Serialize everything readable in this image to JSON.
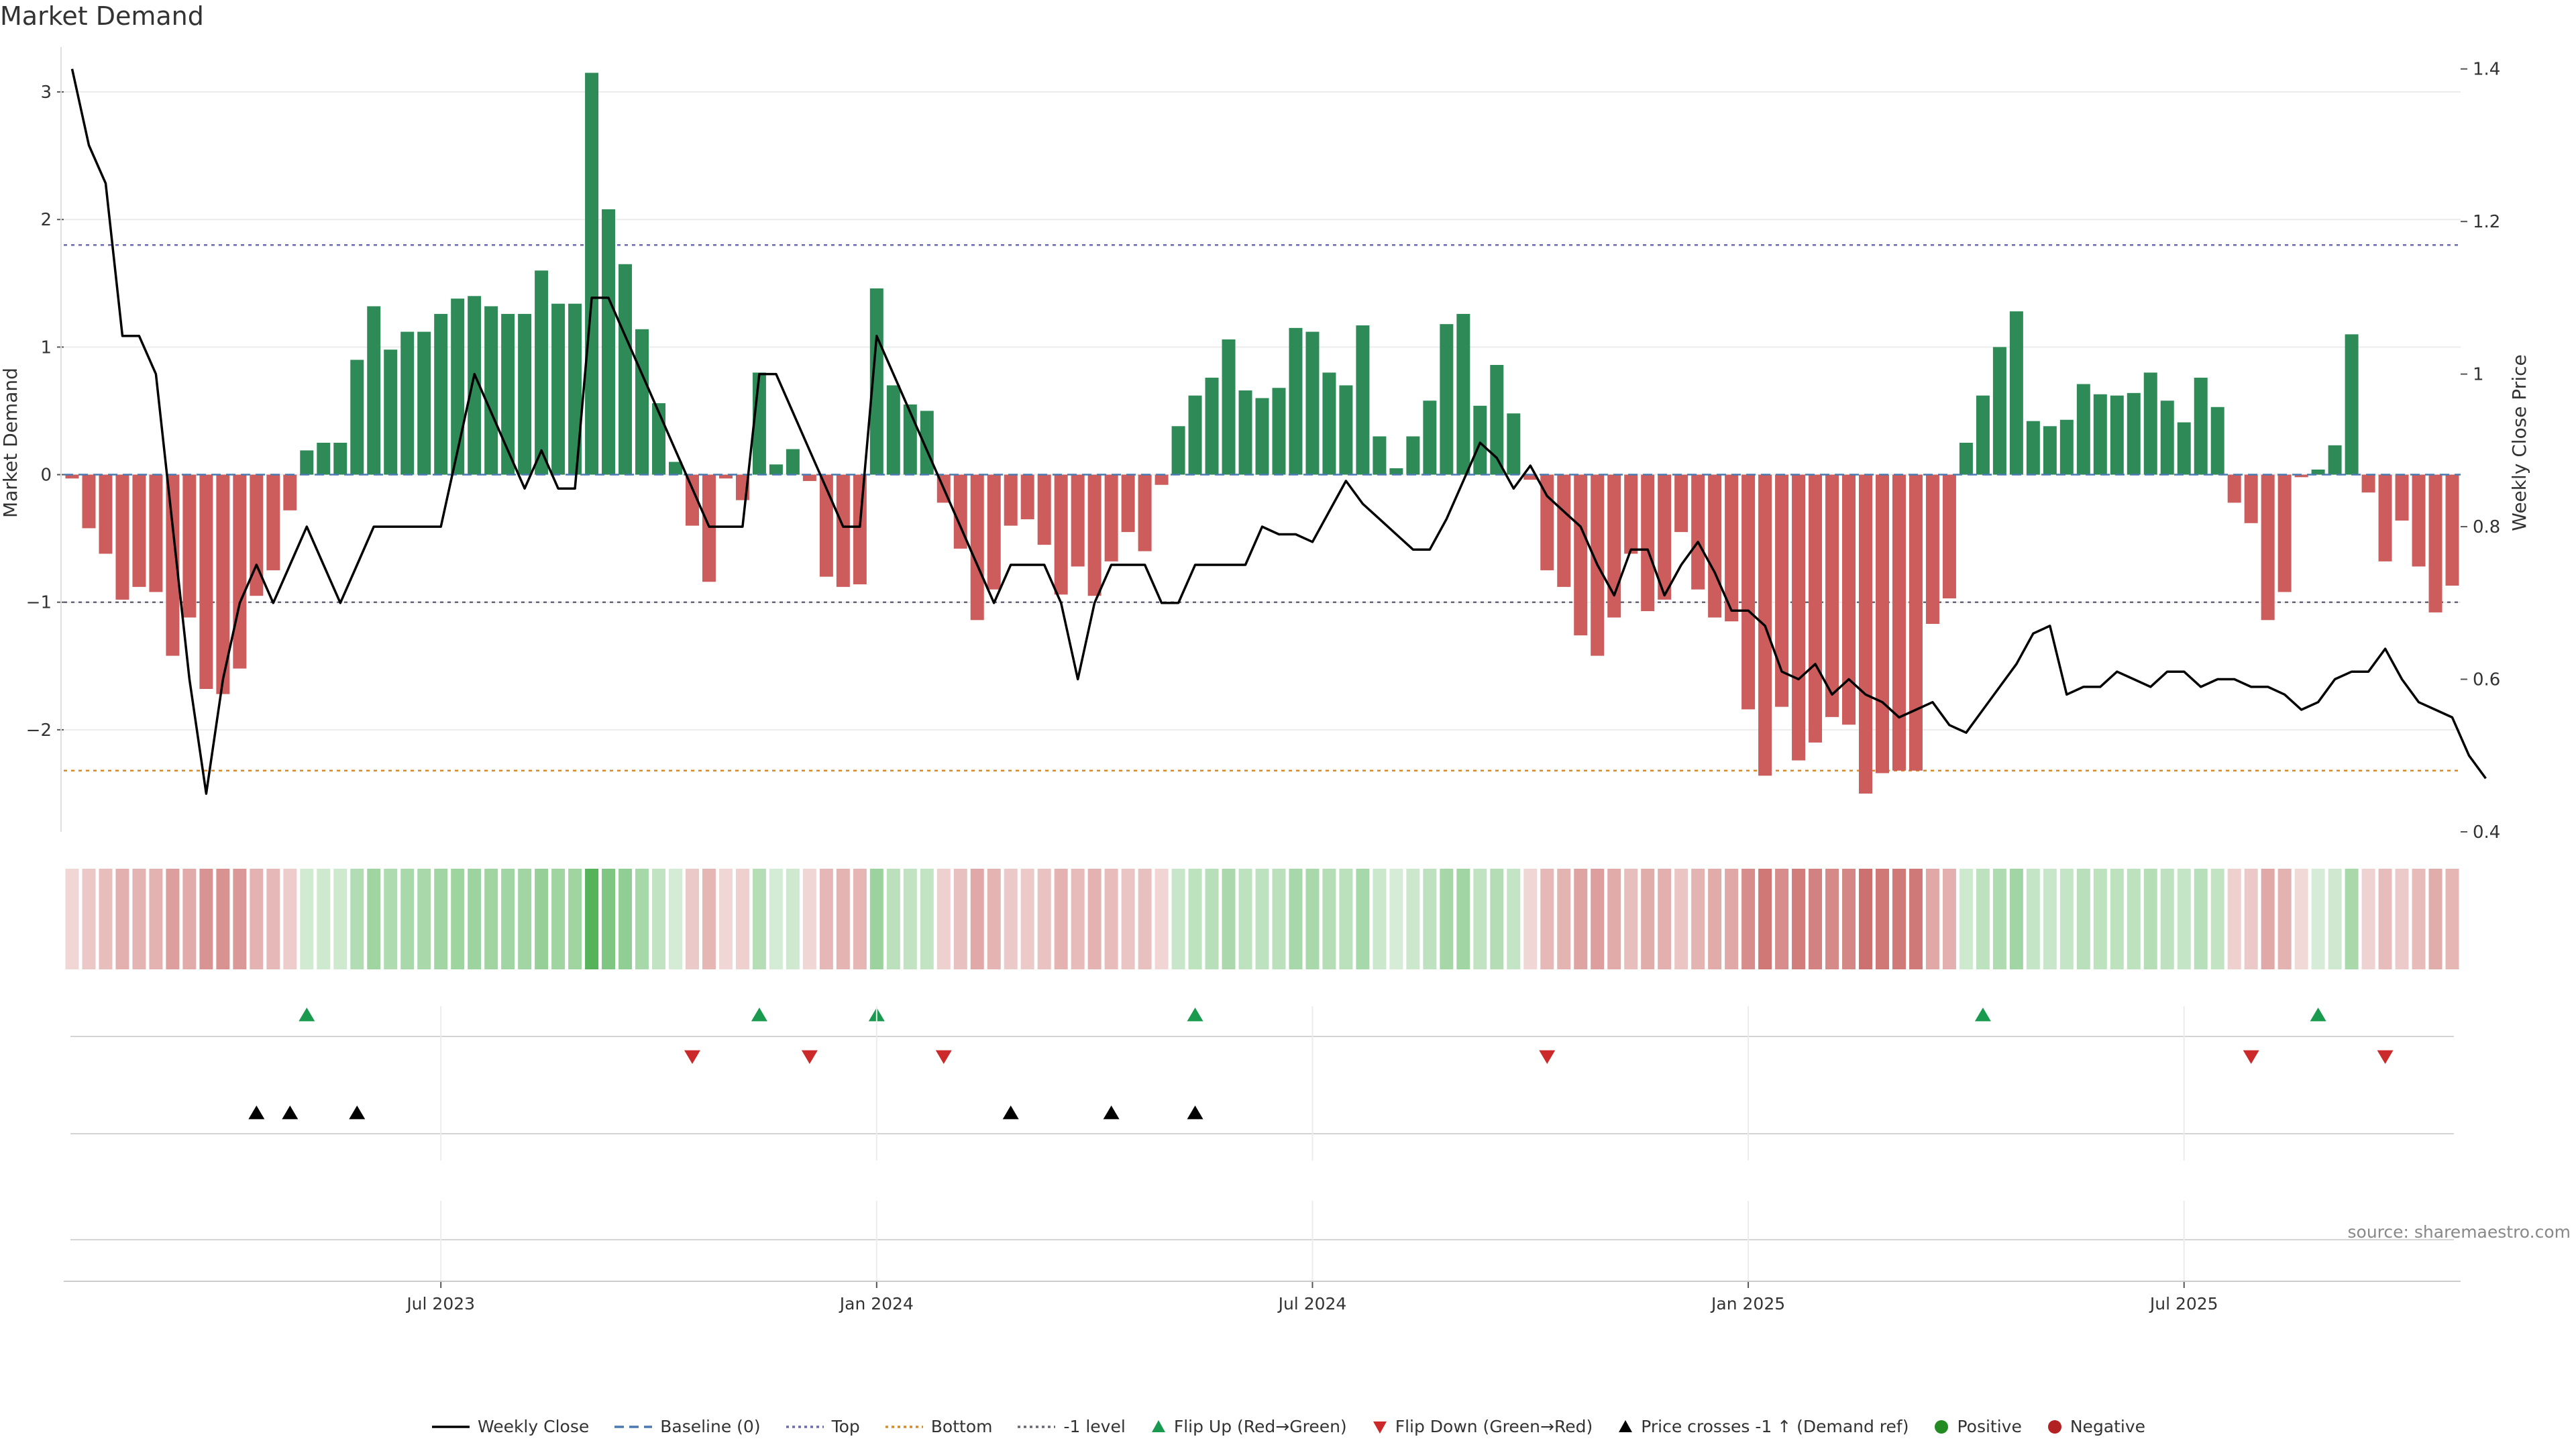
{
  "header": {
    "title": "Market Demand"
  },
  "source": "source: sharemaestro.com",
  "legend": [
    {
      "name": "weekly-close",
      "label": "Weekly Close",
      "kind": "line",
      "color": "#000000",
      "dash": ""
    },
    {
      "name": "baseline",
      "label": "Baseline (0)",
      "kind": "line",
      "color": "#4a7ab0",
      "dash": "14,8"
    },
    {
      "name": "top",
      "label": "Top",
      "kind": "line",
      "color": "#6b6bb5",
      "dash": "4,5"
    },
    {
      "name": "bottom",
      "label": "Bottom",
      "kind": "line",
      "color": "#d98a2b",
      "dash": "4,5"
    },
    {
      "name": "minus1",
      "label": "-1 level",
      "kind": "line",
      "color": "#666677",
      "dash": "4,5"
    },
    {
      "name": "flip-up",
      "label": "Flip Up (Red→Green)",
      "kind": "up",
      "color": "#1a9a4e"
    },
    {
      "name": "flip-down",
      "label": "Flip Down (Green→Red)",
      "kind": "down",
      "color": "#cc2a2a"
    },
    {
      "name": "price-cross",
      "label": "Price crosses -1 ↑ (Demand ref)",
      "kind": "up",
      "color": "#000000"
    },
    {
      "name": "positive",
      "label": "Positive",
      "kind": "dot",
      "color": "#228b22"
    },
    {
      "name": "negative",
      "label": "Negative",
      "kind": "dot",
      "color": "#b22222"
    }
  ],
  "colors": {
    "positive": "#2e8b57",
    "negative": "#cd5c5c",
    "price": "#000000",
    "top": "#6b6bb5",
    "bottom": "#d98a2b",
    "minus1": "#666677",
    "baseline": "#4a7ab0",
    "heat_pos": "#4caf50",
    "heat_neg": "#c0504d"
  },
  "chart_data": {
    "type": "bar",
    "title": "Market Demand",
    "xlabel": "",
    "ylabel": "Market Demand",
    "y2label": "Weekly Close Price",
    "ylim": [
      -2.8,
      3.3
    ],
    "y2lim": [
      0.4,
      1.42
    ],
    "yticks": [
      3,
      2,
      1,
      0,
      -1,
      -2
    ],
    "yticklabels": [
      "3",
      "2",
      "1",
      "0",
      "−1",
      "−2"
    ],
    "y2ticks": [
      1.4,
      1.2,
      1.0,
      0.8,
      0.6,
      0.4
    ],
    "y2ticklabels": [
      "1.4",
      "1.2",
      "1",
      "0.8",
      "0.6",
      "0.4"
    ],
    "xticks": [
      {
        "label": "Jul 2023",
        "week": 22
      },
      {
        "label": "Jan 2024",
        "week": 48
      },
      {
        "label": "Jul 2024",
        "week": 74
      },
      {
        "label": "Jan 2025",
        "week": 100
      },
      {
        "label": "Jul 2025",
        "week": 126
      }
    ],
    "levels": {
      "top": 1.8,
      "bottom": -2.32,
      "minus1": -1.0,
      "baseline": 0
    },
    "series": [
      {
        "name": "Market Demand",
        "values": [
          -0.03,
          -0.42,
          -0.62,
          -0.98,
          -0.88,
          -0.92,
          -1.42,
          -1.12,
          -1.68,
          -1.72,
          -1.52,
          -0.95,
          -0.75,
          -0.28,
          0.19,
          0.25,
          0.25,
          0.9,
          1.32,
          0.98,
          1.12,
          1.12,
          1.26,
          1.38,
          1.4,
          1.32,
          1.26,
          1.26,
          1.6,
          1.34,
          1.34,
          3.15,
          2.08,
          1.65,
          1.14,
          0.56,
          0.1,
          -0.4,
          -0.84,
          -0.03,
          -0.2,
          0.8,
          0.08,
          0.2,
          -0.05,
          -0.8,
          -0.88,
          -0.86,
          1.46,
          0.7,
          0.55,
          0.5,
          -0.22,
          -0.58,
          -1.14,
          -0.9,
          -0.4,
          -0.35,
          -0.55,
          -0.94,
          -0.72,
          -0.95,
          -0.68,
          -0.45,
          -0.6,
          -0.08,
          0.38,
          0.62,
          0.76,
          1.06,
          0.66,
          0.6,
          0.68,
          1.15,
          1.12,
          0.8,
          0.7,
          1.17,
          0.3,
          0.05,
          0.3,
          0.58,
          1.18,
          1.26,
          0.54,
          0.86,
          0.48,
          -0.04,
          -0.75,
          -0.88,
          -1.26,
          -1.42,
          -1.12,
          -0.62,
          -1.07,
          -0.98,
          -0.45,
          -0.9,
          -1.12,
          -1.15,
          -1.84,
          -2.36,
          -1.82,
          -2.24,
          -2.1,
          -1.9,
          -1.96,
          -2.5,
          -2.34,
          -2.32,
          -2.32,
          -1.17,
          -0.97,
          0.25,
          0.62,
          1.0,
          1.28,
          0.42,
          0.38,
          0.43,
          0.71,
          0.63,
          0.62,
          0.64,
          0.8,
          0.58,
          0.41,
          0.76,
          0.53,
          -0.22,
          -0.38,
          -1.14,
          -0.92,
          -0.02,
          0.04,
          0.23,
          1.1,
          -0.14,
          -0.68,
          -0.36,
          -0.72,
          -1.08,
          -0.87
        ]
      },
      {
        "name": "Weekly Close",
        "axis": "y2",
        "values": [
          1.4,
          1.3,
          1.25,
          1.05,
          1.05,
          1.0,
          0.8,
          0.6,
          0.45,
          0.6,
          0.7,
          0.75,
          0.7,
          0.75,
          0.8,
          0.75,
          0.7,
          0.75,
          0.8,
          0.8,
          0.8,
          0.8,
          0.8,
          0.9,
          1.0,
          0.95,
          0.9,
          0.85,
          0.9,
          0.85,
          0.85,
          1.1,
          1.1,
          1.05,
          1.0,
          0.95,
          0.9,
          0.85,
          0.8,
          0.8,
          0.8,
          1.0,
          1.0,
          0.95,
          0.9,
          0.85,
          0.8,
          0.8,
          1.05,
          1.0,
          0.95,
          0.9,
          0.85,
          0.8,
          0.75,
          0.7,
          0.75,
          0.75,
          0.75,
          0.7,
          0.6,
          0.7,
          0.75,
          0.75,
          0.75,
          0.7,
          0.7,
          0.75,
          0.75,
          0.75,
          0.75,
          0.8,
          0.79,
          0.79,
          0.78,
          0.82,
          0.86,
          0.83,
          0.81,
          0.79,
          0.77,
          0.77,
          0.81,
          0.86,
          0.91,
          0.89,
          0.85,
          0.88,
          0.84,
          0.82,
          0.8,
          0.75,
          0.71,
          0.77,
          0.77,
          0.71,
          0.75,
          0.78,
          0.74,
          0.69,
          0.69,
          0.67,
          0.61,
          0.6,
          0.62,
          0.58,
          0.6,
          0.58,
          0.57,
          0.55,
          0.56,
          0.57,
          0.54,
          0.53,
          0.56,
          0.59,
          0.62,
          0.66,
          0.67,
          0.58,
          0.59,
          0.59,
          0.61,
          0.6,
          0.59,
          0.61,
          0.61,
          0.59,
          0.6,
          0.6,
          0.59,
          0.59,
          0.58,
          0.56,
          0.57,
          0.6,
          0.61,
          0.61,
          0.64,
          0.6,
          0.57,
          0.56,
          0.55,
          0.5,
          0.47
        ]
      }
    ],
    "flip_up_weeks": [
      14,
      41,
      48,
      67,
      114,
      134
    ],
    "flip_down_weeks": [
      37,
      44,
      52,
      88,
      130,
      138
    ],
    "price_cross_weeks": [
      11,
      13,
      17,
      56,
      62,
      67
    ]
  }
}
